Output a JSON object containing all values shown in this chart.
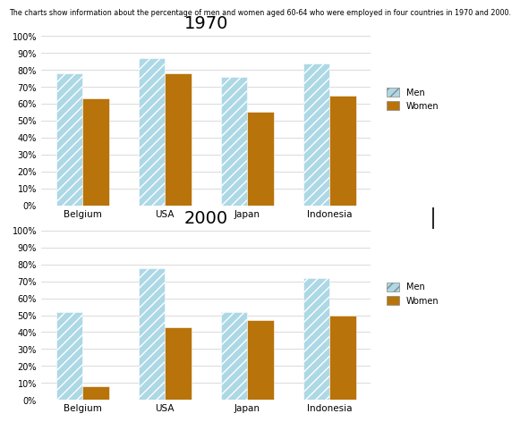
{
  "header": "The charts show information about the percentage of men and women aged 60-64 who were employed in four countries in 1970 and 2000.",
  "countries": [
    "Belgium",
    "USA",
    "Japan",
    "Indonesia"
  ],
  "1970": {
    "men": [
      78,
      87,
      76,
      84
    ],
    "women": [
      63,
      78,
      55,
      65
    ]
  },
  "2000": {
    "men": [
      52,
      78,
      52,
      72
    ],
    "women": [
      8,
      43,
      47,
      50
    ]
  },
  "men_color": "#ADD8E6",
  "women_color": "#B8730A",
  "title_1970": "1970",
  "title_2000": "2000",
  "legend_men": "Men",
  "legend_women": "Women",
  "yticks": [
    0,
    10,
    20,
    30,
    40,
    50,
    60,
    70,
    80,
    90,
    100
  ],
  "ytick_labels": [
    "0%",
    "10%",
    "20%",
    "30%",
    "40%",
    "50%",
    "60%",
    "70%",
    "80%",
    "90%",
    "100%"
  ],
  "header_fontsize": 5.8,
  "title_fontsize": 14,
  "tick_fontsize": 7,
  "xtick_fontsize": 7.5,
  "legend_fontsize": 7,
  "bar_width": 0.32
}
